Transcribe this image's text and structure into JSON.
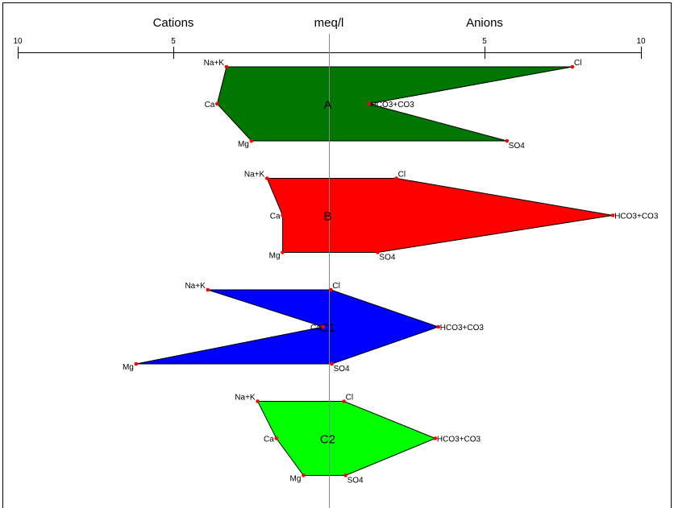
{
  "chart_data": {
    "type": "stiff",
    "header": {
      "left": "Cations",
      "center": "meq/l",
      "right": "Anions"
    },
    "axis": {
      "ticks_left": [
        "10",
        "5"
      ],
      "ticks_right": [
        "5",
        "10"
      ],
      "range": [
        -10,
        10
      ]
    },
    "cation_labels": [
      "Na+K",
      "Ca",
      "Mg"
    ],
    "anion_labels": [
      "Cl",
      "HCO3+CO3",
      "SO4"
    ],
    "samples": [
      {
        "name": "A",
        "color": "#007700",
        "cations": [
          3.3,
          3.6,
          2.5
        ],
        "anions": [
          7.8,
          1.27,
          5.7
        ]
      },
      {
        "name": "B",
        "color": "#ff0000",
        "cations": [
          2.0,
          1.5,
          1.5
        ],
        "anions": [
          2.15,
          9.1,
          1.55
        ]
      },
      {
        "name": "C1",
        "color": "#0000ff",
        "cations": [
          3.9,
          0.2,
          6.2
        ],
        "anions": [
          0.05,
          3.5,
          0.08
        ]
      },
      {
        "name": "C2",
        "color": "#00ff00",
        "cations": [
          2.3,
          1.7,
          0.83
        ],
        "anions": [
          0.47,
          3.4,
          0.52
        ]
      }
    ],
    "point_color": "#ff0000"
  }
}
